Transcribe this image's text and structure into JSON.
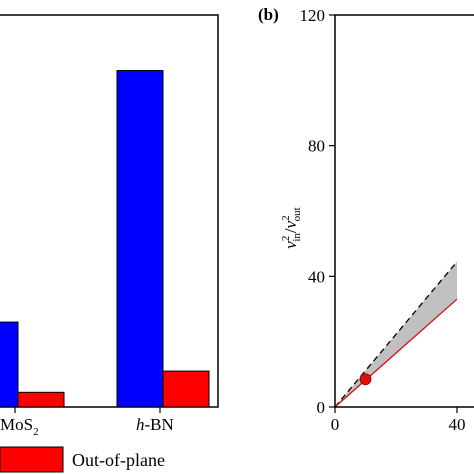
{
  "chart_data": [
    {
      "type": "bar",
      "panel_label": "",
      "categories": [
        {
          "pre": "MoS",
          "sub": "2",
          "italic": ""
        },
        {
          "pre": "",
          "sub": "",
          "italic": "h",
          "post": "-BN"
        }
      ],
      "series": [
        {
          "name": "",
          "color": "#0000ff",
          "values": [
            26,
            103
          ]
        },
        {
          "name": "Out-of-plane",
          "color": "#ff0000",
          "values": [
            4.5,
            11
          ]
        }
      ],
      "ylim": [
        0,
        120
      ],
      "legend": {
        "placement": "bottom",
        "label": "Out-of-plane"
      }
    },
    {
      "type": "line",
      "panel_label": "(b)",
      "ylabel": {
        "v1": "v",
        "sup1": "2",
        "sub1": "in",
        "slash": "/",
        "v2": "v",
        "sup2": "2",
        "sub2": "out"
      },
      "xlim": [
        0,
        40
      ],
      "ylim": [
        0,
        120
      ],
      "xticks": [
        "0",
        "40"
      ],
      "yticks": [
        "0",
        "40",
        "80",
        "120"
      ],
      "series": [
        {
          "name": "",
          "style": "dashed",
          "color": "#000000",
          "points": [
            [
              0,
              0
            ],
            [
              40,
              44.5
            ]
          ]
        },
        {
          "name": "",
          "style": "solid",
          "color": "#d01010",
          "points": [
            [
              0,
              0
            ],
            [
              40,
              33
            ]
          ]
        },
        {
          "name": "",
          "style": "marker",
          "color": "#e01010",
          "points": [
            [
              10,
              8.5
            ]
          ]
        }
      ],
      "shaded_region": {
        "color": "#c0c0c0",
        "between": [
          "dashed",
          "solid"
        ]
      }
    }
  ]
}
